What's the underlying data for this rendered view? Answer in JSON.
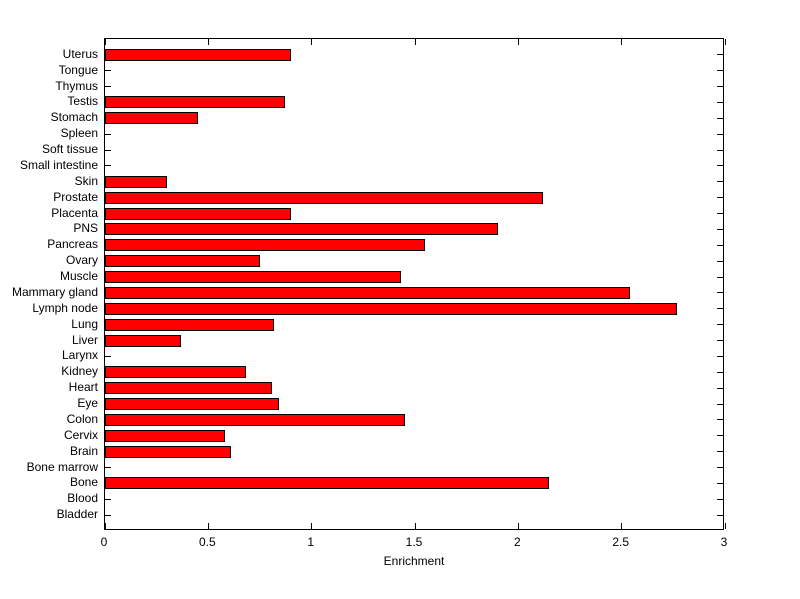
{
  "chart_data": {
    "type": "bar",
    "orientation": "horizontal",
    "title": "",
    "xlabel": "Enrichment",
    "ylabel": "",
    "xlim": [
      0,
      3
    ],
    "xticks": [
      0,
      0.5,
      1,
      1.5,
      2,
      2.5,
      3
    ],
    "xtick_labels": [
      "0",
      "0.5",
      "1",
      "1.5",
      "2",
      "2.5",
      "3"
    ],
    "grid": false,
    "legend": "none",
    "bar_color": "#ff0000",
    "bar_edge_color": "#000000",
    "background_color": "#ffffff",
    "categories": [
      "Uterus",
      "Tongue",
      "Thymus",
      "Testis",
      "Stomach",
      "Spleen",
      "Soft tissue",
      "Small intestine",
      "Skin",
      "Prostate",
      "Placenta",
      "PNS",
      "Pancreas",
      "Ovary",
      "Muscle",
      "Mammary gland",
      "Lymph node",
      "Lung",
      "Liver",
      "Larynx",
      "Kidney",
      "Heart",
      "Eye",
      "Colon",
      "Cervix",
      "Brain",
      "Bone marrow",
      "Bone",
      "Blood",
      "Bladder"
    ],
    "values": [
      0.9,
      0,
      0,
      0.87,
      0.45,
      0,
      0,
      0,
      0.3,
      2.12,
      0.9,
      1.9,
      1.55,
      0.75,
      1.43,
      2.54,
      2.77,
      0.82,
      0.37,
      0,
      0.68,
      0.81,
      0.84,
      1.45,
      0.58,
      0.61,
      0,
      2.15,
      0,
      0
    ]
  }
}
